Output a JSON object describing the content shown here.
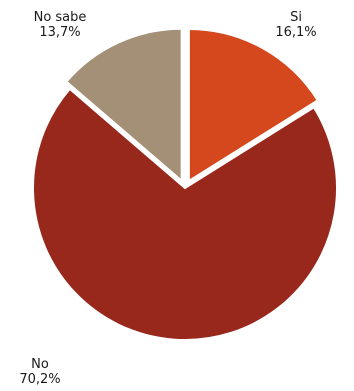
{
  "chart_data": {
    "type": "pie",
    "title": "",
    "slices": [
      {
        "label": "Si",
        "value": 16.1,
        "value_text": "16,1%",
        "color": "#d5471c",
        "exploded": true
      },
      {
        "label": "No",
        "value": 70.2,
        "value_text": "70,2%",
        "color": "#98281c",
        "exploded": false
      },
      {
        "label": "No sabe",
        "value": 13.7,
        "value_text": "13,7%",
        "color": "#a48f77",
        "exploded": true
      }
    ],
    "start_angle": "12 o'clock",
    "direction": "clockwise",
    "legend": "none"
  }
}
